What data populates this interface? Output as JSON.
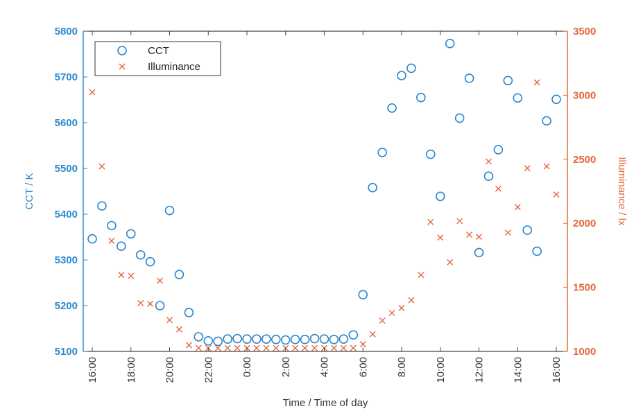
{
  "chart_data": {
    "type": "scatter",
    "xlabel": "Time / Time of day",
    "ylabel_left": "CCT / K",
    "ylabel_right": "Illuminance / lx",
    "x_ticks": [
      "16:00",
      "18:00",
      "20:00",
      "22:00",
      "0:00",
      "2:00",
      "4:00",
      "6:00",
      "8:00",
      "10:00",
      "12:00",
      "14:00",
      "16:00"
    ],
    "y_left_ticks": [
      5100,
      5200,
      5300,
      5400,
      5500,
      5600,
      5700,
      5800
    ],
    "y_right_ticks": [
      1000,
      1500,
      2000,
      2500,
      3000,
      3500
    ],
    "ylim_left": [
      5100,
      5800
    ],
    "ylim_right": [
      1000,
      3500
    ],
    "grid": false,
    "legend_placement": "top-left",
    "colors": {
      "left_axis": "#2b8ad0",
      "right_axis": "#e2683a",
      "cct": "#2a87cc",
      "illuminance": "#e2683a",
      "frame": "#444444"
    },
    "x": [
      "16:00",
      "16:30",
      "17:00",
      "17:30",
      "18:00",
      "18:30",
      "19:00",
      "19:30",
      "20:00",
      "20:30",
      "21:00",
      "21:30",
      "22:00",
      "22:30",
      "23:00",
      "23:30",
      "0:00",
      "0:30",
      "1:00",
      "1:30",
      "2:00",
      "2:30",
      "3:00",
      "3:30",
      "4:00",
      "4:30",
      "5:00",
      "5:30",
      "6:00",
      "6:30",
      "7:00",
      "7:30",
      "8:00",
      "8:30",
      "9:00",
      "9:30",
      "10:00",
      "10:30",
      "11:00",
      "11:30",
      "12:00",
      "12:30",
      "13:00",
      "13:30",
      "14:00",
      "14:30",
      "15:00",
      "15:30",
      "16:00"
    ],
    "series": [
      {
        "name": "CCT",
        "axis": "left",
        "marker": "circle",
        "values": [
          5346,
          5418,
          5375,
          5330,
          5357,
          5311,
          5296,
          5200,
          5408,
          5268,
          5185,
          5132,
          5123,
          5122,
          5127,
          5128,
          5127,
          5127,
          5127,
          5126,
          5125,
          5126,
          5126,
          5128,
          5127,
          5126,
          5127,
          5136,
          5224,
          5458,
          5535,
          5632,
          5703,
          5719,
          5655,
          5531,
          5439,
          5773,
          5610,
          5697,
          5316,
          5483,
          5541,
          5692,
          5654,
          5365,
          5319,
          5604,
          5651
        ]
      },
      {
        "name": "Illuminance",
        "axis": "right",
        "marker": "x",
        "values": [
          3024,
          2445,
          1864,
          1597,
          1590,
          1377,
          1372,
          1552,
          1245,
          1172,
          1049,
          1027,
          1026,
          1026,
          1026,
          1026,
          1026,
          1026,
          1026,
          1026,
          1026,
          1026,
          1026,
          1026,
          1026,
          1026,
          1026,
          1027,
          1056,
          1134,
          1240,
          1300,
          1339,
          1399,
          1597,
          2010,
          1889,
          1696,
          2017,
          1911,
          1895,
          2483,
          2270,
          1927,
          2126,
          2430,
          3100,
          2445,
          2225
        ]
      }
    ]
  }
}
